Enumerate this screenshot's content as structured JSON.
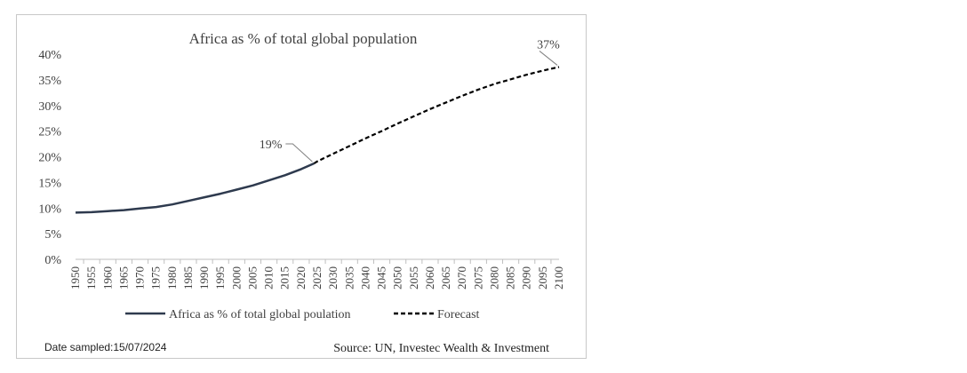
{
  "chart_data": {
    "type": "line",
    "title": "Africa as % of total global population",
    "xlabel": "",
    "ylabel": "",
    "ylim": [
      0,
      40
    ],
    "y_ticks": [
      "0%",
      "5%",
      "10%",
      "15%",
      "20%",
      "25%",
      "30%",
      "35%",
      "40%"
    ],
    "x": [
      1950,
      1955,
      1960,
      1965,
      1970,
      1975,
      1980,
      1985,
      1990,
      1995,
      2000,
      2005,
      2010,
      2015,
      2020,
      2025,
      2030,
      2035,
      2040,
      2045,
      2050,
      2055,
      2060,
      2065,
      2070,
      2075,
      2080,
      2085,
      2090,
      2095,
      2100
    ],
    "grid": false,
    "legend_position": "bottom",
    "series": [
      {
        "name": "Africa as % of total global poulation",
        "style": "solid",
        "color": "#2e3a4e",
        "x": [
          1950,
          1955,
          1960,
          1965,
          1970,
          1975,
          1980,
          1985,
          1990,
          1995,
          2000,
          2005,
          2010,
          2015,
          2020,
          2024
        ],
        "values": [
          9.1,
          9.2,
          9.4,
          9.6,
          9.9,
          10.2,
          10.7,
          11.4,
          12.1,
          12.8,
          13.6,
          14.4,
          15.4,
          16.4,
          17.6,
          18.7
        ]
      },
      {
        "name": "Forecast",
        "style": "dashed",
        "color": "#000000",
        "x": [
          2024,
          2025,
          2030,
          2035,
          2040,
          2045,
          2050,
          2055,
          2060,
          2065,
          2070,
          2075,
          2080,
          2085,
          2090,
          2095,
          2100
        ],
        "values": [
          18.7,
          19.1,
          20.6,
          22.1,
          23.6,
          25.0,
          26.5,
          27.9,
          29.3,
          30.6,
          31.9,
          33.1,
          34.2,
          35.1,
          36.0,
          36.8,
          37.5
        ]
      }
    ],
    "annotations": [
      {
        "text": "19%",
        "x": 2024,
        "y": 18.7
      },
      {
        "text": "37%",
        "x": 2100,
        "y": 37.5
      }
    ]
  },
  "footer": {
    "date_sampled": "Date sampled:15/07/2024",
    "source": "Source: UN, Investec Wealth & Investment"
  }
}
